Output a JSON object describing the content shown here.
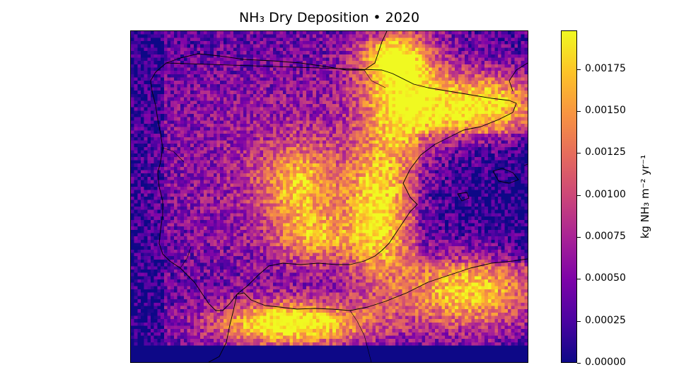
{
  "title": "NH₃ Dry Deposition • 2020",
  "colorbar": {
    "label": "kg NH₃ m⁻² yr⁻¹",
    "colormap": "plasma",
    "min": 0.0,
    "max": 0.00198,
    "ticks": [
      "0.00000",
      "0.00025",
      "0.00050",
      "0.00075",
      "0.00100",
      "0.00125",
      "0.00150",
      "0.00175"
    ],
    "tick_values": [
      0.0,
      0.00025,
      0.0005,
      0.00075,
      0.001,
      0.00125,
      0.0015,
      0.00175
    ]
  },
  "chart_data": {
    "type": "heatmap",
    "title": "NH₃ Dry Deposition • 2020",
    "colorbar_label": "kg NH₃ m⁻² yr⁻¹",
    "value_range": [
      0.0,
      0.00198
    ],
    "colors": {
      "low": "#0d0887",
      "mid": "#cc4778",
      "high": "#f0f921"
    }
  }
}
